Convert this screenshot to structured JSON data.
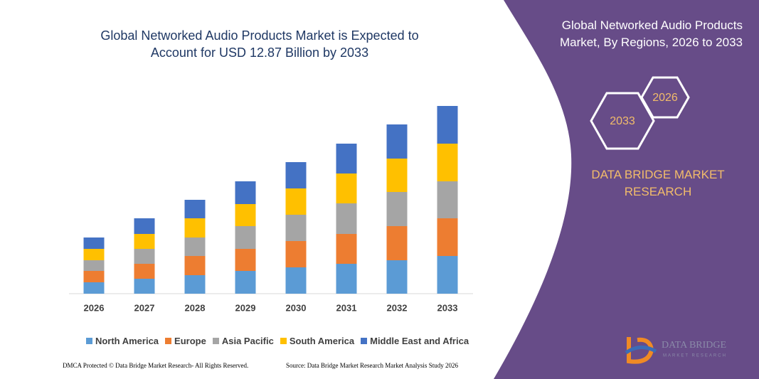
{
  "chart_data": {
    "type": "stacked-bar",
    "title": "Global Networked Audio Products Market is Expected to Account for USD 12.87 Billion by 2033",
    "categories": [
      "2026",
      "2027",
      "2028",
      "2029",
      "2030",
      "2031",
      "2032",
      "2033"
    ],
    "series": [
      {
        "name": "North America",
        "color": "#5b9bd5",
        "values": [
          16,
          21,
          26,
          32,
          37,
          42,
          47,
          53
        ]
      },
      {
        "name": "Europe",
        "color": "#ed7d31",
        "values": [
          16,
          21,
          27,
          31,
          37,
          42,
          48,
          53
        ]
      },
      {
        "name": "Asia Pacific",
        "color": "#a5a5a5",
        "values": [
          15,
          21,
          26,
          32,
          37,
          43,
          48,
          52
        ]
      },
      {
        "name": "South America",
        "color": "#ffc000",
        "values": [
          16,
          21,
          27,
          31,
          37,
          42,
          47,
          53
        ]
      },
      {
        "name": "Middle East and Africa",
        "color": "#4472c4",
        "values": [
          16,
          22,
          26,
          32,
          37,
          42,
          48,
          53
        ]
      }
    ]
  },
  "panel": {
    "title": "Global Networked Audio Products Market, By Regions, 2026 to 2033",
    "badges": [
      "2033",
      "2026"
    ],
    "brand": "DATA BRIDGE MARKET RESEARCH",
    "logo": {
      "name": "DATA BRIDGE",
      "tagline": "MARKET RESEARCH"
    }
  },
  "footer": {
    "left": "DMCA Protected © Data Bridge Market Research- All Rights Reserved.",
    "right": "Source: Data Bridge Market Research Market Analysis Study 2026"
  }
}
